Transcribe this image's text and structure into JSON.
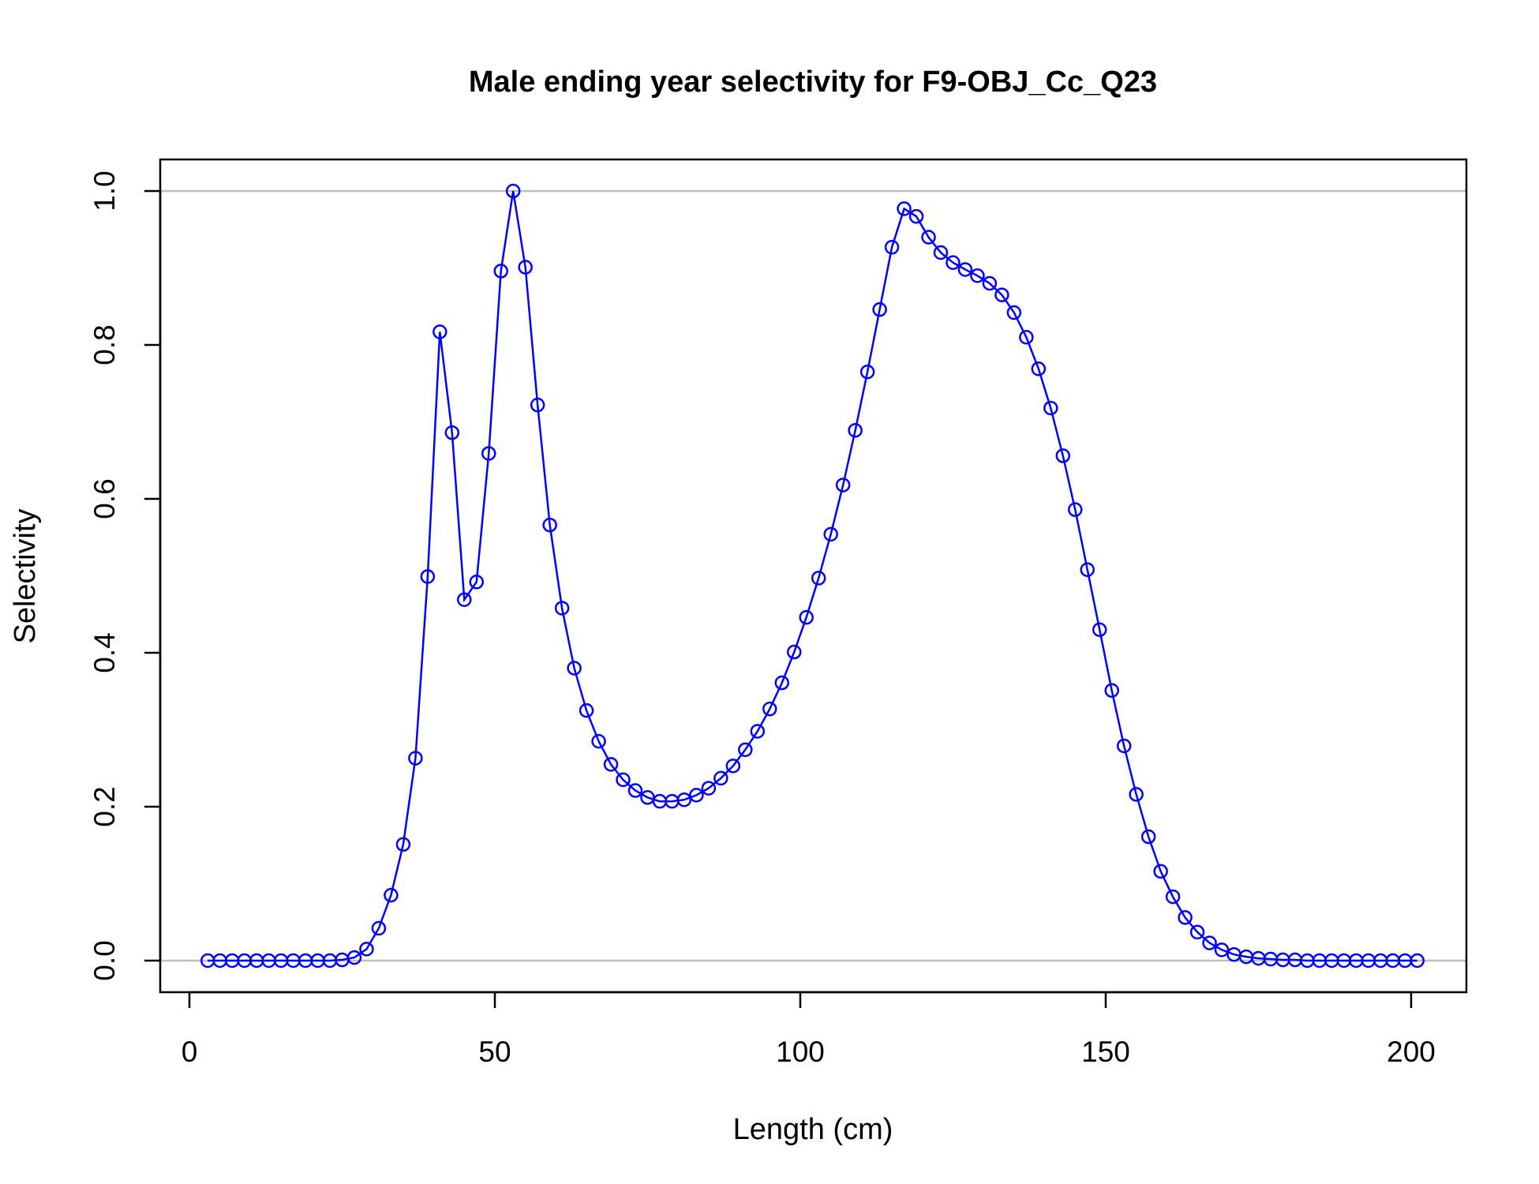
{
  "chart_data": {
    "type": "line",
    "title": "Male ending year selectivity for F9-OBJ_Cc_Q23",
    "xlabel": "Length (cm)",
    "ylabel": "Selectivity",
    "xlim": [
      0,
      205
    ],
    "ylim": [
      -0.04,
      1.04
    ],
    "x_ticks": [
      "0",
      "50",
      "100",
      "150",
      "200"
    ],
    "y_ticks": [
      "0.0",
      "0.2",
      "0.4",
      "0.6",
      "0.8",
      "1.0"
    ],
    "reference_lines_y": [
      0,
      1
    ],
    "series_color": "#0000ff",
    "reference_line_color": "#bebebe",
    "markers": "open-circle",
    "grid": false,
    "series": [
      {
        "x": [
          3,
          5,
          7,
          9,
          11,
          13,
          15,
          17,
          19,
          21,
          23,
          25,
          27,
          29,
          31,
          33,
          35,
          37,
          39,
          41,
          43,
          45,
          47,
          49,
          51,
          53,
          55,
          57,
          59,
          61,
          63,
          65,
          67,
          69,
          71,
          73,
          75,
          77,
          79,
          81,
          83,
          85,
          87,
          89,
          91,
          93,
          95,
          97,
          99,
          101,
          103,
          105,
          107,
          109,
          111,
          113,
          115,
          117,
          119,
          121,
          123,
          125,
          127,
          129,
          131,
          133,
          135,
          137,
          139,
          141,
          143,
          145,
          147,
          149,
          151,
          153,
          155,
          157,
          159,
          161,
          163,
          165,
          167,
          169,
          171,
          173,
          175,
          177,
          179,
          181,
          183,
          185,
          187,
          189,
          191,
          193,
          195,
          197,
          199,
          201
        ],
        "y": [
          0,
          0,
          0,
          0,
          0,
          0,
          0,
          0,
          0,
          0,
          0,
          0.001,
          0.004,
          0.015,
          0.042,
          0.085,
          0.151,
          0.263,
          0.499,
          0.817,
          0.686,
          0.469,
          0.492,
          0.659,
          0.896,
          1.0,
          0.901,
          0.722,
          0.566,
          0.458,
          0.38,
          0.325,
          0.285,
          0.255,
          0.235,
          0.221,
          0.212,
          0.207,
          0.207,
          0.209,
          0.215,
          0.224,
          0.237,
          0.253,
          0.274,
          0.298,
          0.327,
          0.361,
          0.401,
          0.446,
          0.497,
          0.554,
          0.618,
          0.689,
          0.765,
          0.846,
          0.927,
          0.977,
          0.967,
          0.94,
          0.92,
          0.907,
          0.898,
          0.89,
          0.88,
          0.865,
          0.842,
          0.81,
          0.769,
          0.718,
          0.656,
          0.586,
          0.508,
          0.43,
          0.351,
          0.279,
          0.216,
          0.161,
          0.116,
          0.083,
          0.056,
          0.037,
          0.023,
          0.014,
          0.008,
          0.005,
          0.003,
          0.002,
          0.001,
          0.001,
          0,
          0,
          0,
          0,
          0,
          0,
          0,
          0,
          0,
          0
        ]
      }
    ]
  }
}
